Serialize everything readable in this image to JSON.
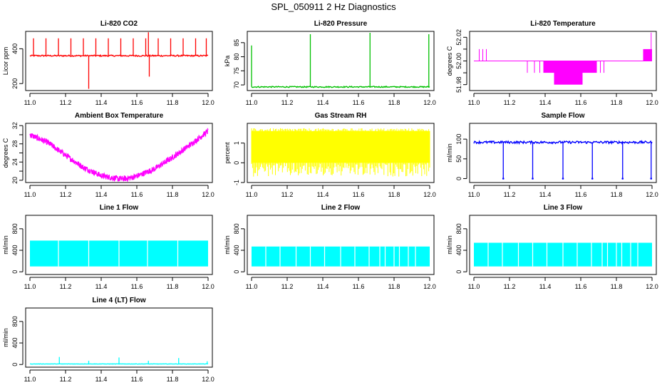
{
  "figure_title": "SPL_050911  2 Hz Diagnostics",
  "chart_data": [
    {
      "id": "co2",
      "type": "line",
      "title": "Li-820 CO2",
      "ylabel": "Licor ppm",
      "color": "#ff0000",
      "xlim": [
        11.0,
        12.0
      ],
      "ylim": [
        160,
        500
      ],
      "yticks": [
        200,
        400
      ],
      "x_ticks": [
        "11.0",
        "11.2",
        "11.4",
        "11.6",
        "11.8",
        "12.0"
      ],
      "baseline": 360,
      "noise": 4,
      "spikes": [
        {
          "x": 11.02,
          "y": 460
        },
        {
          "x": 11.09,
          "y": 460
        },
        {
          "x": 11.16,
          "y": 460
        },
        {
          "x": 11.23,
          "y": 460
        },
        {
          "x": 11.3,
          "y": 460
        },
        {
          "x": 11.33,
          "y": 170
        },
        {
          "x": 11.37,
          "y": 460
        },
        {
          "x": 11.44,
          "y": 460
        },
        {
          "x": 11.51,
          "y": 460
        },
        {
          "x": 11.58,
          "y": 460
        },
        {
          "x": 11.65,
          "y": 460
        },
        {
          "x": 11.665,
          "y": 495
        },
        {
          "x": 11.67,
          "y": 240
        },
        {
          "x": 11.72,
          "y": 460
        },
        {
          "x": 11.79,
          "y": 460
        },
        {
          "x": 11.86,
          "y": 460
        },
        {
          "x": 11.93,
          "y": 460
        },
        {
          "x": 11.99,
          "y": 460
        }
      ]
    },
    {
      "id": "pressure",
      "type": "line",
      "title": "Li-820 Pressure",
      "ylabel": "kPa",
      "color": "#00c000",
      "xlim": [
        11.0,
        12.0
      ],
      "ylim": [
        68,
        89
      ],
      "yticks": [
        70,
        75,
        80,
        85
      ],
      "x_ticks": [
        "11.0",
        "11.2",
        "11.4",
        "11.6",
        "11.8",
        "12.0"
      ],
      "baseline": 69.3,
      "noise": 0.2,
      "spikes": [
        {
          "x": 11.0,
          "y": 84
        },
        {
          "x": 11.33,
          "y": 88
        },
        {
          "x": 11.665,
          "y": 88.5
        },
        {
          "x": 11.995,
          "y": 88
        }
      ]
    },
    {
      "id": "temp",
      "type": "step",
      "title": "Li-820 Temperature",
      "ylabel": "degrees C",
      "color": "#ff00ff",
      "xlim": [
        11.0,
        12.0
      ],
      "ylim": [
        51.975,
        52.025
      ],
      "yticks": [
        51.98,
        51.99,
        52.0,
        52.01,
        52.02
      ],
      "ytick_labels": [
        "51.98",
        "",
        "52.00",
        "",
        "52.02"
      ],
      "x_ticks": [
        "11.0",
        "11.2",
        "11.4",
        "11.6",
        "11.8",
        "12.0"
      ],
      "baseline": 52.0,
      "low": 51.99,
      "lower": 51.98,
      "high": 52.01
    },
    {
      "id": "ambient",
      "type": "line",
      "title": "Ambient Box Temperature",
      "ylabel": "degrees C",
      "color": "#ff00ff",
      "xlim": [
        11.0,
        12.0
      ],
      "ylim": [
        19.5,
        32.5
      ],
      "yticks": [
        20,
        22,
        24,
        26,
        28,
        30,
        32
      ],
      "ytick_labels": [
        "20",
        "",
        "24",
        "",
        "28",
        "",
        "32"
      ],
      "x_ticks": [
        "11.0",
        "11.2",
        "11.4",
        "11.6",
        "11.8",
        "12.0"
      ],
      "curve": [
        [
          11.0,
          30.0
        ],
        [
          11.1,
          28.3
        ],
        [
          11.2,
          25.5
        ],
        [
          11.3,
          22.8
        ],
        [
          11.4,
          21.0
        ],
        [
          11.5,
          20.3
        ],
        [
          11.55,
          20.4
        ],
        [
          11.6,
          20.9
        ],
        [
          11.7,
          22.5
        ],
        [
          11.8,
          25.0
        ],
        [
          11.9,
          27.8
        ],
        [
          12.0,
          30.8
        ]
      ],
      "noise": 0.8
    },
    {
      "id": "rh",
      "type": "band",
      "title": "Gas Stream RH",
      "ylabel": "percent",
      "color": "#ffff00",
      "xlim": [
        11.0,
        12.0
      ],
      "ylim": [
        -1,
        2
      ],
      "yticks": [
        -1,
        0,
        1
      ],
      "x_ticks": [
        "11.0",
        "11.2",
        "11.4",
        "11.6",
        "11.8",
        "12.0"
      ],
      "band": [
        0.0,
        1.6
      ],
      "extremes": [
        -0.7,
        1.75
      ]
    },
    {
      "id": "sample",
      "type": "line",
      "title": "Sample Flow",
      "ylabel": "ml/min",
      "color": "#0000ff",
      "xlim": [
        11.0,
        12.0
      ],
      "ylim": [
        -10,
        140
      ],
      "yticks": [
        0,
        50,
        100
      ],
      "x_ticks": [
        "11.0",
        "11.2",
        "11.4",
        "11.6",
        "11.8",
        "12.0"
      ],
      "baseline": 92,
      "noise": 3,
      "dips": [
        11.165,
        11.33,
        11.5,
        11.665,
        11.835,
        11.995
      ]
    },
    {
      "id": "line1",
      "type": "band",
      "title": "Line 1 Flow",
      "ylabel": "ml/min",
      "color": "#00ffff",
      "xlim": [
        11.0,
        12.0
      ],
      "ylim": [
        -50,
        1050
      ],
      "yticks": [
        0,
        400,
        800
      ],
      "x_ticks": [
        "11.0",
        "11.2",
        "11.4",
        "11.6",
        "11.8",
        "12.0"
      ],
      "band": [
        100,
        580
      ],
      "gaps": [
        11.16,
        11.33,
        11.5,
        11.66,
        11.83
      ]
    },
    {
      "id": "line2",
      "type": "band",
      "title": "Line 2 Flow",
      "ylabel": "ml/min",
      "color": "#00ffff",
      "xlim": [
        11.0,
        12.0
      ],
      "ylim": [
        -50,
        1050
      ],
      "yticks": [
        0,
        400,
        800
      ],
      "x_ticks": [
        "11.0",
        "11.2",
        "11.4",
        "11.6",
        "11.8",
        "12.0"
      ],
      "band": [
        100,
        470
      ],
      "gaps": [
        11.08,
        11.16,
        11.25,
        11.33,
        11.41,
        11.5,
        11.58,
        11.66,
        11.72,
        11.75,
        11.8,
        11.83,
        11.88,
        11.92
      ]
    },
    {
      "id": "line3",
      "type": "band",
      "title": "Line 3 Flow",
      "ylabel": "ml/min",
      "color": "#00ffff",
      "xlim": [
        11.0,
        12.0
      ],
      "ylim": [
        -50,
        1050
      ],
      "yticks": [
        0,
        400,
        800
      ],
      "x_ticks": [
        "11.0",
        "11.2",
        "11.4",
        "11.6",
        "11.8",
        "12.0"
      ],
      "band": [
        100,
        540
      ],
      "gaps": [
        11.08,
        11.16,
        11.25,
        11.33,
        11.41,
        11.5,
        11.58,
        11.66,
        11.72,
        11.75,
        11.8,
        11.83,
        11.88,
        11.92
      ]
    },
    {
      "id": "line4",
      "type": "line",
      "title": "Line 4 (LT) Flow",
      "ylabel": "ml/min",
      "color": "#00ffff",
      "xlim": [
        11.0,
        12.0
      ],
      "ylim": [
        -50,
        1050
      ],
      "yticks": [
        0,
        400,
        800
      ],
      "x_ticks": [
        "11.0",
        "11.2",
        "11.4",
        "11.6",
        "11.8",
        "12.0"
      ],
      "baseline": 10,
      "noise": 3,
      "spikes": [
        {
          "x": 11.165,
          "y": 140
        },
        {
          "x": 11.33,
          "y": 70
        },
        {
          "x": 11.5,
          "y": 130
        },
        {
          "x": 11.665,
          "y": 70
        },
        {
          "x": 11.835,
          "y": 120
        },
        {
          "x": 11.995,
          "y": 60
        }
      ]
    }
  ]
}
